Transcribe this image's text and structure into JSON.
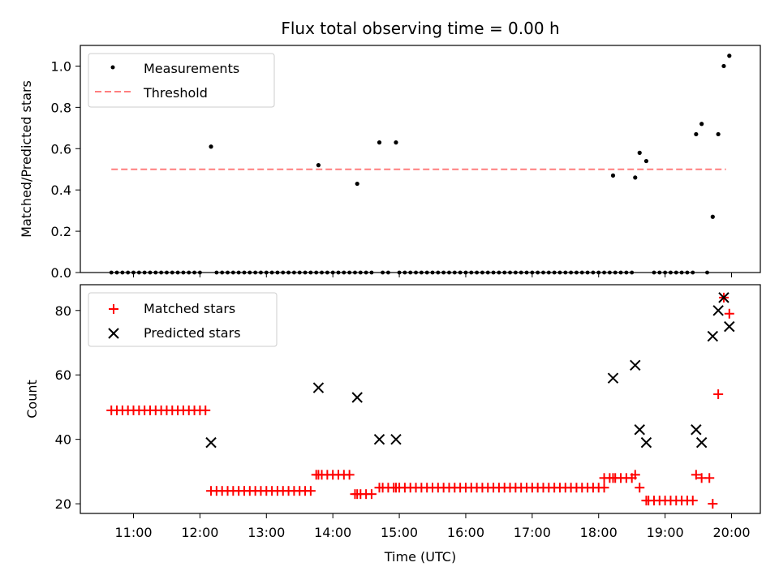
{
  "chart_data": [
    {
      "type": "scatter",
      "title": "Flux total observing time = 0.00 h",
      "ylabel": "Matched/Predicted stars",
      "xlabel": "",
      "ylim": [
        0.0,
        1.1
      ],
      "yticks": [
        0.0,
        0.2,
        0.4,
        0.6,
        0.8,
        1.0
      ],
      "ytick_labels": [
        "0.0",
        "0.2",
        "0.4",
        "0.6",
        "0.8",
        "1.0"
      ],
      "legend_position": "upper-left",
      "legend": [
        {
          "label": "Measurements",
          "marker": "dot",
          "color": "#000000"
        },
        {
          "label": "Threshold",
          "marker": "dashed-line",
          "color": "#ff7f7f"
        }
      ],
      "threshold": {
        "value": 0.5,
        "x_start": "10:40",
        "x_end": "19:55",
        "color": "#ff7f7f"
      },
      "series": [
        {
          "name": "Measurements",
          "color": "#000000",
          "points": [
            [
              "12:10",
              0.61
            ],
            [
              "13:47",
              0.52
            ],
            [
              "14:22",
              0.43
            ],
            [
              "14:42",
              0.63
            ],
            [
              "14:57",
              0.63
            ],
            [
              "18:13",
              0.47
            ],
            [
              "18:33",
              0.46
            ],
            [
              "18:37",
              0.58
            ],
            [
              "18:43",
              0.54
            ],
            [
              "19:28",
              0.67
            ],
            [
              "19:33",
              0.72
            ],
            [
              "19:43",
              0.27
            ],
            [
              "19:48",
              0.67
            ],
            [
              "19:53",
              1.0
            ],
            [
              "19:58",
              1.05
            ]
          ],
          "zero_segments": [
            [
              "10:40",
              "12:00"
            ],
            [
              "12:15",
              "13:00"
            ],
            [
              "13:05",
              "13:45"
            ],
            [
              "13:50",
              "14:20"
            ],
            [
              "14:25",
              "14:35"
            ],
            [
              "14:45",
              "14:52"
            ],
            [
              "15:00",
              "17:55"
            ],
            [
              "18:00",
              "18:10"
            ],
            [
              "18:15",
              "18:30"
            ],
            [
              "18:50",
              "19:25"
            ],
            [
              "19:38",
              "19:40"
            ]
          ]
        }
      ]
    },
    {
      "type": "scatter",
      "ylabel": "Count",
      "xlabel": "Time (UTC)",
      "ylim": [
        17,
        88
      ],
      "yticks": [
        20,
        40,
        60,
        80
      ],
      "ytick_labels": [
        "20",
        "40",
        "60",
        "80"
      ],
      "x_ticks": [
        "11:00",
        "12:00",
        "13:00",
        "14:00",
        "15:00",
        "16:00",
        "17:00",
        "18:00",
        "19:00",
        "20:00"
      ],
      "legend_position": "upper-left",
      "legend": [
        {
          "label": "Matched stars",
          "marker": "plus",
          "color": "#ff0000"
        },
        {
          "label": "Predicted stars",
          "marker": "x",
          "color": "#000000"
        }
      ],
      "series": [
        {
          "name": "Matched stars",
          "color": "#ff0000",
          "points": [
            [
              "12:10",
              24
            ],
            [
              "13:47",
              29
            ],
            [
              "14:22",
              23
            ],
            [
              "14:42",
              25
            ],
            [
              "14:57",
              25
            ],
            [
              "18:13",
              28
            ],
            [
              "18:33",
              29
            ],
            [
              "18:37",
              25
            ],
            [
              "18:43",
              21
            ],
            [
              "19:28",
              29
            ],
            [
              "19:33",
              28
            ],
            [
              "19:40",
              28
            ],
            [
              "19:43",
              20
            ],
            [
              "19:48",
              54
            ],
            [
              "19:53",
              84
            ],
            [
              "19:58",
              79
            ]
          ],
          "flat_runs": [
            {
              "from": "10:40",
              "to": "12:05",
              "value": 49
            },
            {
              "from": "12:15",
              "to": "13:40",
              "value": 24
            },
            {
              "from": "13:45",
              "to": "14:15",
              "value": 29
            },
            {
              "from": "14:20",
              "to": "14:35",
              "value": 23
            },
            {
              "from": "14:45",
              "to": "18:05",
              "value": 25
            },
            {
              "from": "18:05",
              "to": "18:30",
              "value": 28
            },
            {
              "from": "18:45",
              "to": "19:25",
              "value": 21
            }
          ]
        },
        {
          "name": "Predicted stars",
          "color": "#000000",
          "points": [
            [
              "12:10",
              39
            ],
            [
              "13:47",
              56
            ],
            [
              "14:22",
              53
            ],
            [
              "14:42",
              40
            ],
            [
              "14:57",
              40
            ],
            [
              "18:13",
              59
            ],
            [
              "18:33",
              63
            ],
            [
              "18:37",
              43
            ],
            [
              "18:43",
              39
            ],
            [
              "19:28",
              43
            ],
            [
              "19:33",
              39
            ],
            [
              "19:43",
              72
            ],
            [
              "19:48",
              80
            ],
            [
              "19:53",
              84
            ],
            [
              "19:58",
              75
            ]
          ]
        }
      ]
    }
  ]
}
